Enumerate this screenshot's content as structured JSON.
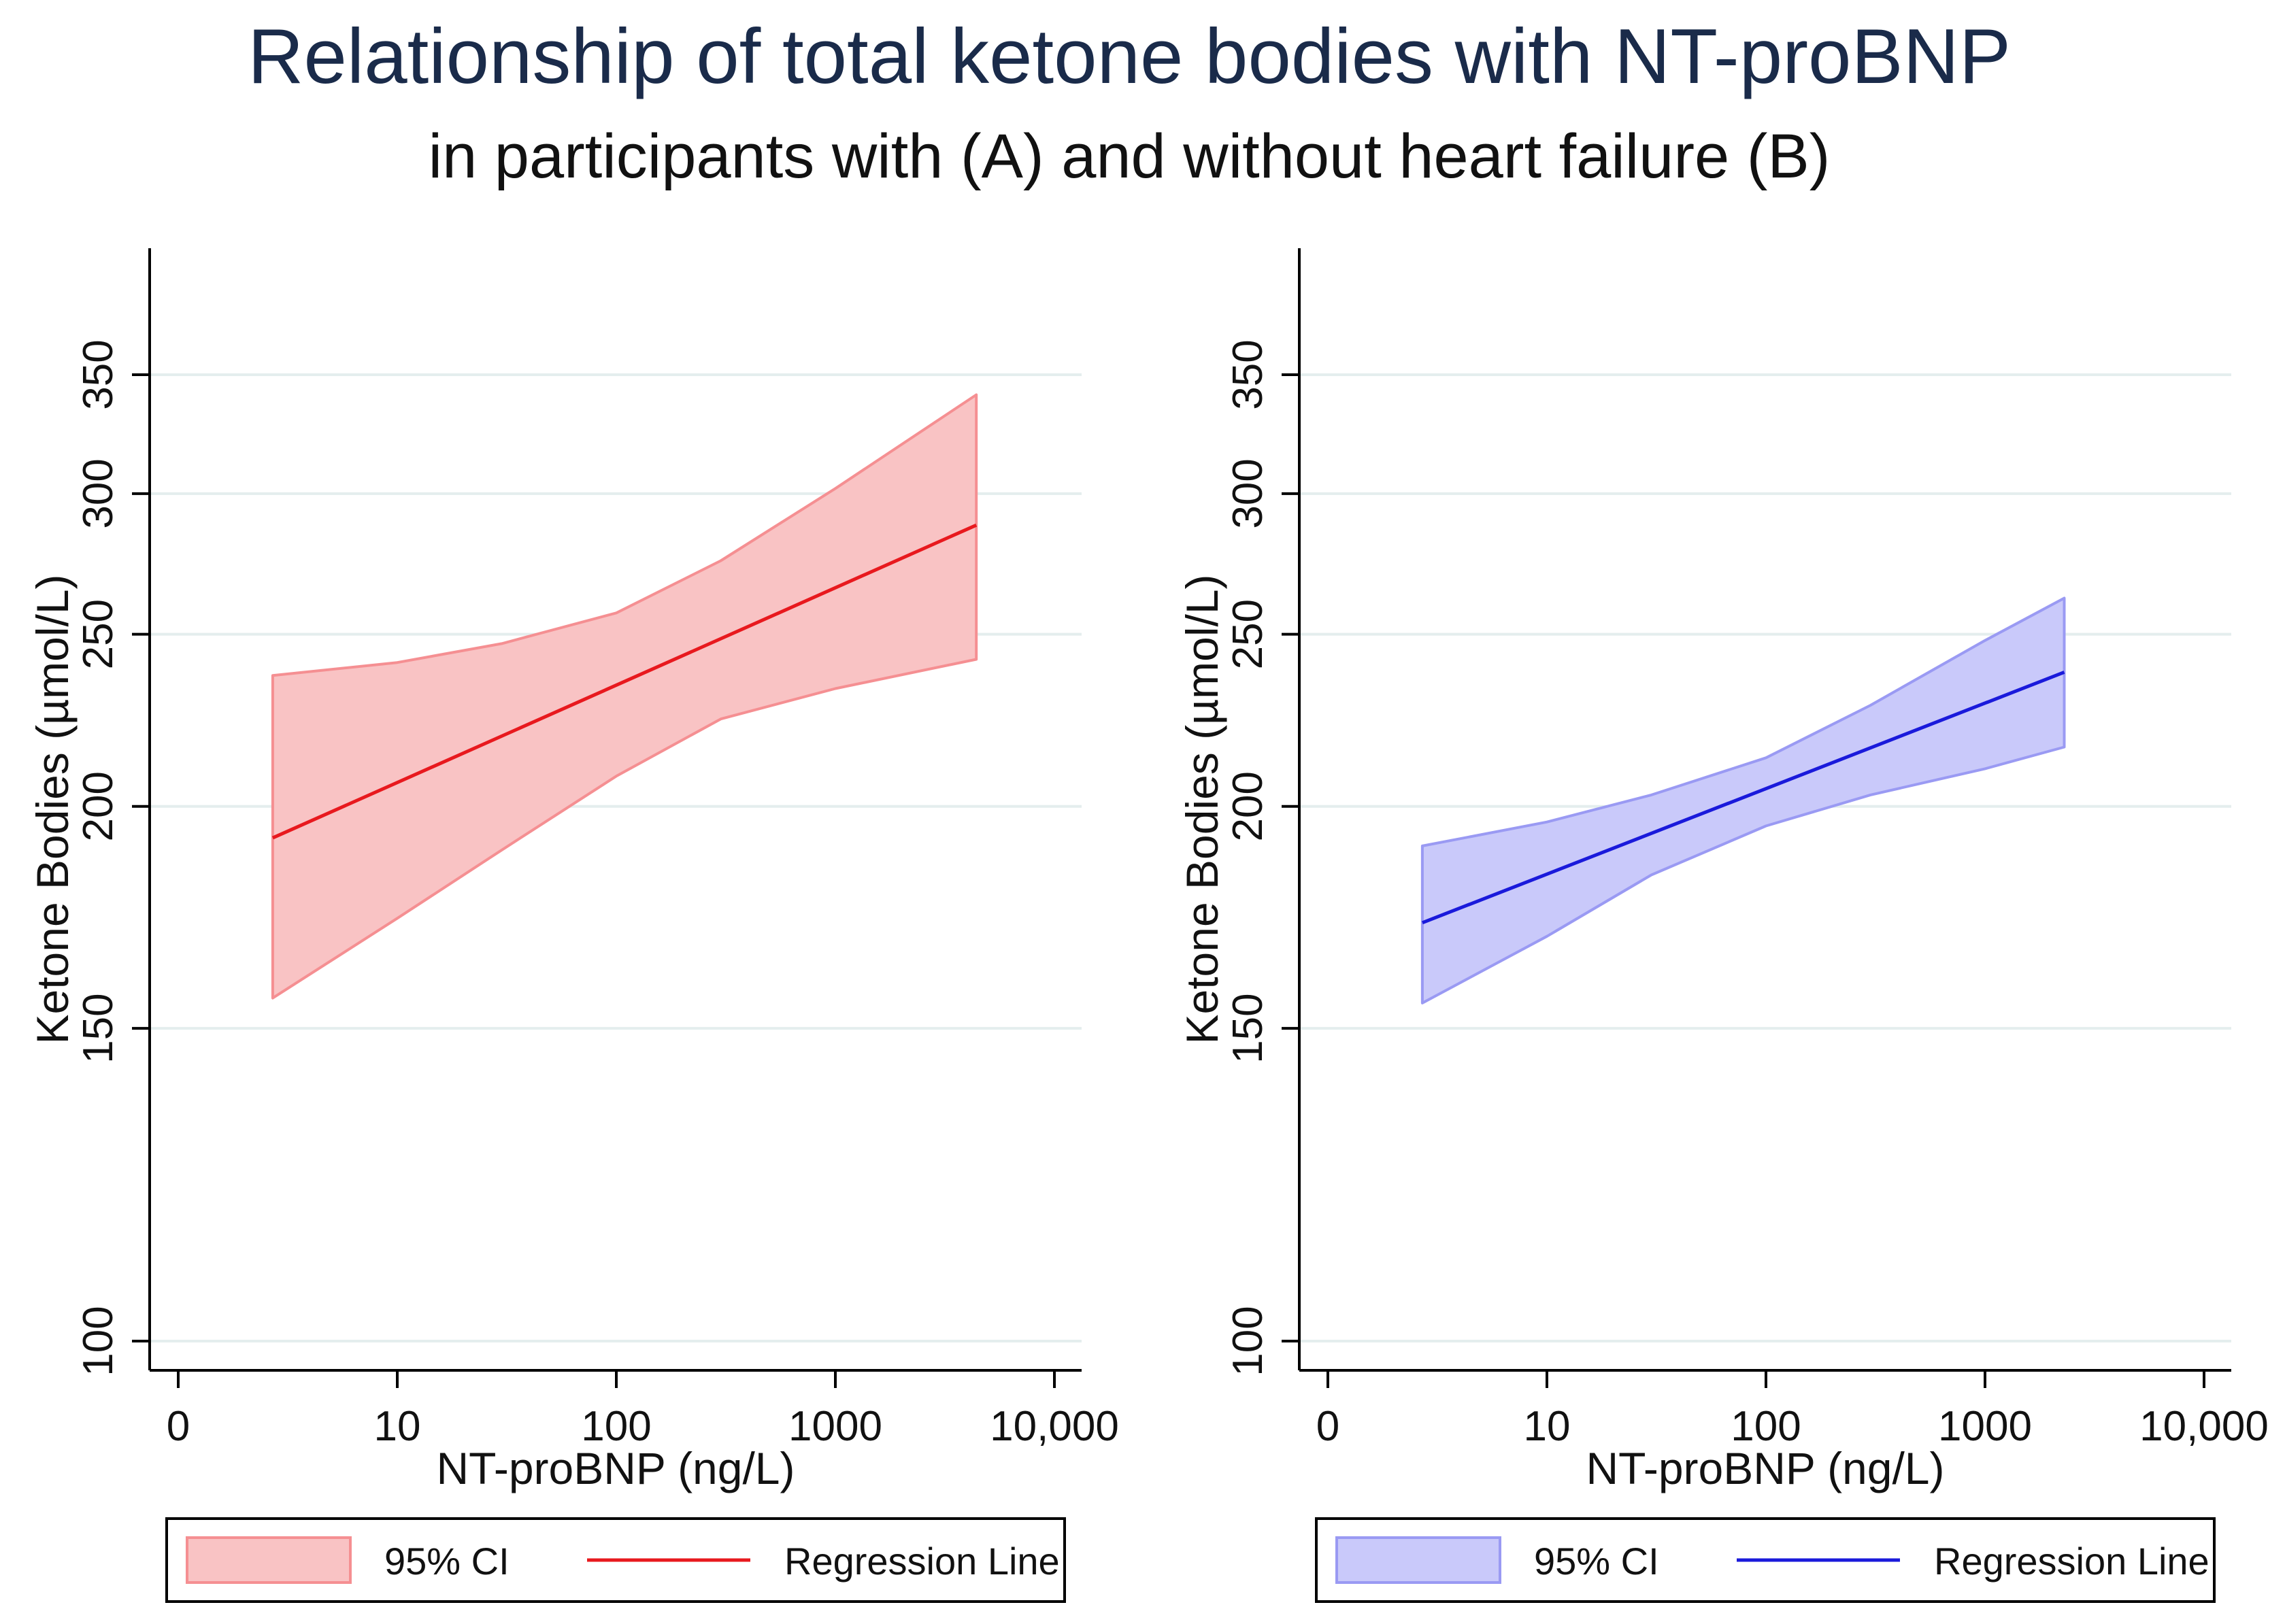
{
  "title": "Relationship of total ketone bodies with NT-proBNP",
  "subtitle": "in participants with (A) and without heart failure (B)",
  "chart_data": [
    {
      "type": "line",
      "panel": "A",
      "xlabel": "NT-proBNP (ng/L)",
      "ylabel": "Ketone Bodies (µmol/L)",
      "x_scale": "log",
      "xticks": [
        0,
        10,
        100,
        1000,
        10000
      ],
      "xtick_labels": [
        "0",
        "10",
        "100",
        "1000",
        "10,000"
      ],
      "yticks": [
        100,
        150,
        200,
        250,
        300,
        350
      ],
      "ytick_labels": [
        "100",
        "150",
        "200",
        "250",
        "300",
        "350"
      ],
      "y_scale": "log",
      "ylim": [
        95,
        390
      ],
      "grid": true,
      "series": [
        {
          "name": "Regression Line",
          "x": [
            2.7,
            4400
          ],
          "values": [
            192,
            288
          ]
        },
        {
          "name": "95% CI",
          "x": [
            2.7,
            10,
            30,
            100,
            300,
            1000,
            4400
          ],
          "upper": [
            237,
            241,
            247,
            257,
            275,
            302,
            341
          ],
          "lower": [
            156,
            173,
            189,
            208,
            224,
            233,
            242
          ]
        }
      ],
      "colors": {
        "line": "#e8191e",
        "band_fill": "#f9c3c4",
        "band_edge": "#f58f92"
      },
      "legend": {
        "items": [
          "95% CI",
          "Regression Line"
        ],
        "position": "bottom"
      }
    },
    {
      "type": "line",
      "panel": "B",
      "xlabel": "NT-proBNP (ng/L)",
      "ylabel": "Ketone Bodies (µmol/L)",
      "x_scale": "log",
      "xticks": [
        0,
        10,
        100,
        1000,
        10000
      ],
      "xtick_labels": [
        "0",
        "10",
        "100",
        "1000",
        "10,000"
      ],
      "yticks": [
        100,
        150,
        200,
        250,
        300,
        350
      ],
      "ytick_labels": [
        "100",
        "150",
        "200",
        "250",
        "300",
        "350"
      ],
      "y_scale": "log",
      "ylim": [
        95,
        390
      ],
      "grid": true,
      "series": [
        {
          "name": "Regression Line",
          "x": [
            2.7,
            2300
          ],
          "values": [
            172,
            238
          ]
        },
        {
          "name": "95% CI",
          "x": [
            2.7,
            10,
            30,
            100,
            300,
            1000,
            2300
          ],
          "upper": [
            190,
            196,
            203,
            213,
            228,
            248,
            262
          ],
          "lower": [
            155,
            169,
            183,
            195,
            203,
            210,
            216
          ]
        }
      ],
      "colors": {
        "line": "#1a1adb",
        "band_fill": "#c9c9fa",
        "band_edge": "#9a9af3"
      },
      "legend": {
        "items": [
          "95% CI",
          "Regression Line"
        ],
        "position": "bottom"
      }
    }
  ]
}
